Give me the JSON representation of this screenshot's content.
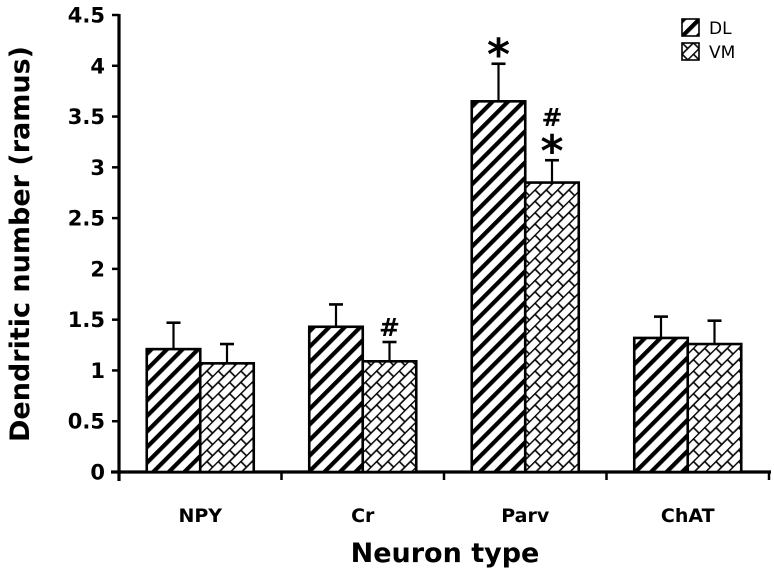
{
  "chart_data": {
    "type": "bar",
    "title": "",
    "xlabel": "Neuron type",
    "ylabel": "Dendritic number (ramus)",
    "ylim": [
      0,
      4.5
    ],
    "yticks": [
      0,
      0.5,
      1,
      1.5,
      2,
      2.5,
      3,
      3.5,
      4,
      4.5
    ],
    "ytick_labels": [
      "0",
      "0.5",
      "1",
      "1.5",
      "2",
      "2.5",
      "3",
      "3.5",
      "4",
      "4.5"
    ],
    "grid": false,
    "legend_position": "top-right",
    "categories": [
      "NPY",
      "Cr",
      "Parv",
      "ChAT"
    ],
    "series": [
      {
        "name": "DL",
        "pattern": "diagonal-stripes",
        "values": [
          1.21,
          1.43,
          3.65,
          1.32
        ],
        "errors": [
          0.26,
          0.22,
          0.37,
          0.21
        ],
        "annotations": [
          "",
          "",
          "*",
          ""
        ]
      },
      {
        "name": "VM",
        "pattern": "diagonal-brick",
        "values": [
          1.07,
          1.09,
          2.85,
          1.26
        ],
        "errors": [
          0.19,
          0.19,
          0.22,
          0.23
        ],
        "annotations": [
          "",
          "#",
          "#*",
          ""
        ]
      }
    ]
  },
  "colors": {
    "ink": "#000000",
    "background": "#ffffff"
  }
}
